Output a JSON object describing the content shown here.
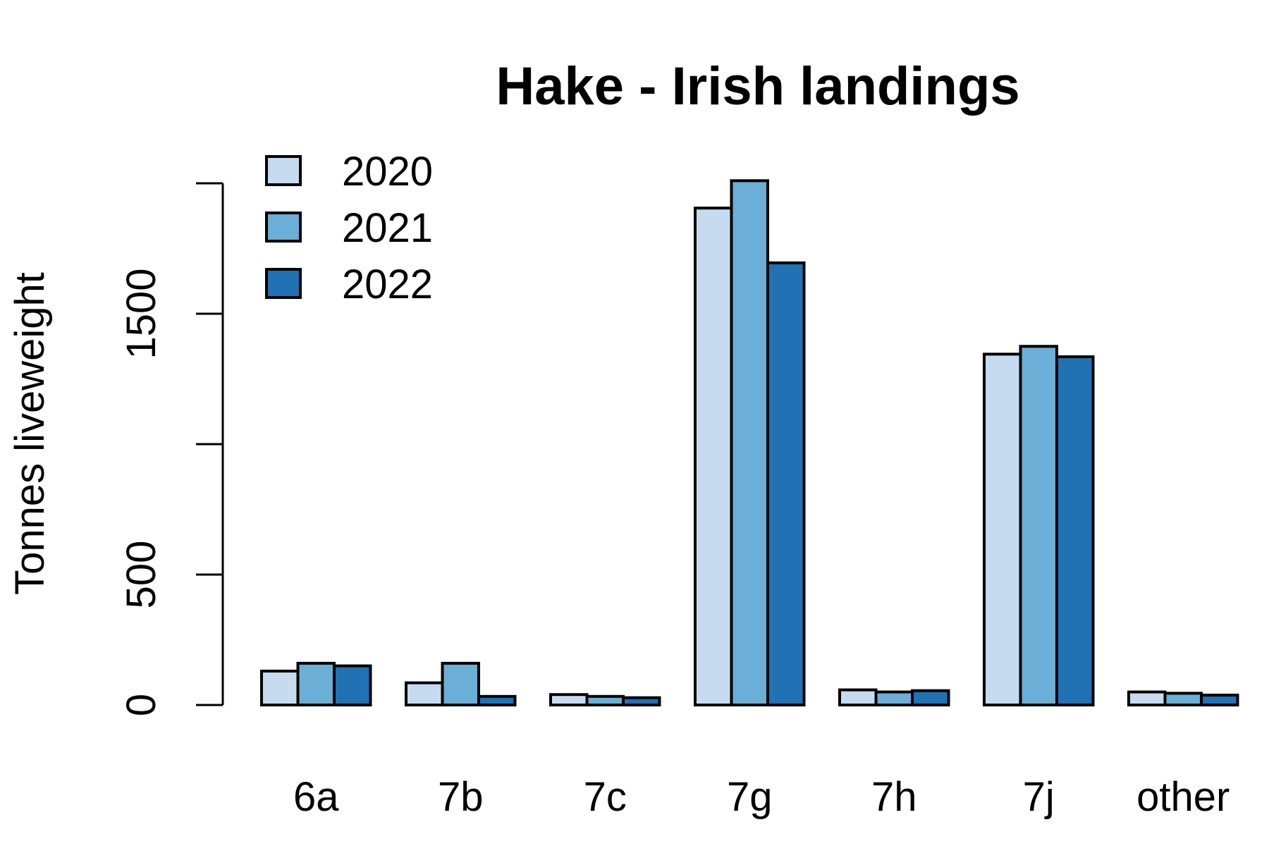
{
  "chart_data": {
    "type": "bar",
    "title": "Hake - Irish landings",
    "xlabel": "",
    "ylabel": "Tonnes liveweight",
    "categories": [
      "6a",
      "7b",
      "7c",
      "7g",
      "7h",
      "7j",
      "other"
    ],
    "series": [
      {
        "name": "2020",
        "color": "#c6dbef",
        "values": [
          130,
          85,
          40,
          1905,
          58,
          1345,
          50
        ]
      },
      {
        "name": "2021",
        "color": "#6baed6",
        "values": [
          160,
          160,
          33,
          2010,
          50,
          1375,
          45
        ]
      },
      {
        "name": "2022",
        "color": "#2171b5",
        "values": [
          150,
          33,
          28,
          1695,
          55,
          1335,
          38
        ]
      }
    ],
    "yticks": [
      0,
      500,
      1000,
      1500,
      2000
    ],
    "ytick_labels": [
      "0",
      "500",
      "",
      "1500",
      ""
    ],
    "ylim": [
      0,
      2050
    ],
    "grid": false,
    "legend_position": "top-left"
  }
}
